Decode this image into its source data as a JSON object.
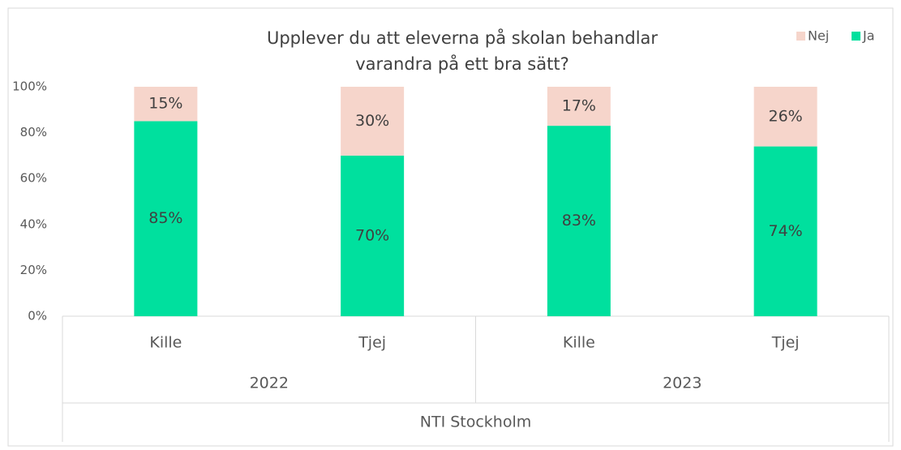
{
  "chart_data": {
    "type": "stacked-bar",
    "title": [
      "Upplever du att eleverna på skolan behandlar",
      "varandra på ett bra sätt?"
    ],
    "categories": [
      "Kille",
      "Tjej",
      "Kille",
      "Tjej"
    ],
    "groups": [
      "2022",
      "2023"
    ],
    "outer_label": "NTI Stockholm",
    "series": [
      {
        "name": "Ja",
        "color": "#00e09e",
        "values": [
          85,
          70,
          83,
          74
        ],
        "value_labels": [
          "85%",
          "70%",
          "83%",
          "74%"
        ]
      },
      {
        "name": "Nej",
        "color": "#f6d5cb",
        "values": [
          15,
          30,
          17,
          26
        ],
        "value_labels": [
          "15%",
          "30%",
          "17%",
          "26%"
        ]
      }
    ],
    "ylim": [
      0,
      100
    ],
    "yticks": [
      {
        "value": 0,
        "label": "0%"
      },
      {
        "value": 20,
        "label": "20%"
      },
      {
        "value": 40,
        "label": "40%"
      },
      {
        "value": 60,
        "label": "60%"
      },
      {
        "value": 80,
        "label": "80%"
      },
      {
        "value": 100,
        "label": "100%"
      }
    ],
    "legend": "top-right"
  }
}
